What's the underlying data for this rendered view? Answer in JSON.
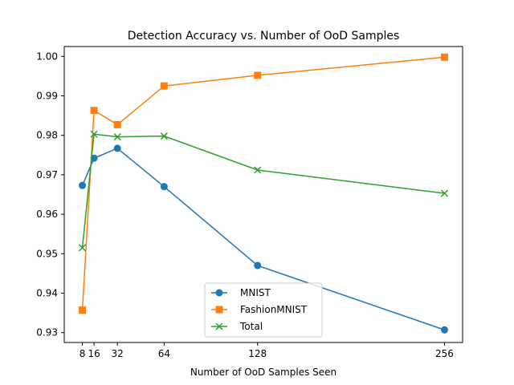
{
  "chart_data": {
    "type": "line",
    "title": "Detection Accuracy vs. Number of OoD Samples",
    "xlabel": "Number of OoD Samples Seen",
    "ylabel": "",
    "x": [
      8,
      16,
      32,
      64,
      128,
      256
    ],
    "x_ticks": [
      "8",
      "16",
      "32",
      "64",
      "128",
      "256"
    ],
    "y_ticks": [
      "0.93",
      "0.94",
      "0.95",
      "0.96",
      "0.97",
      "0.98",
      "0.99",
      "1.00"
    ],
    "ylim": [
      0.9275,
      1.0025
    ],
    "grid": false,
    "legend_position": "lower center",
    "series": [
      {
        "name": "MNIST",
        "color": "#1f77b4",
        "marker": "circle",
        "values": [
          0.9673,
          0.9742,
          0.9767,
          0.967,
          0.947,
          0.9307
        ]
      },
      {
        "name": "FashionMNIST",
        "color": "#ff7f0e",
        "marker": "square",
        "values": [
          0.9357,
          0.9863,
          0.9827,
          0.9925,
          0.9952,
          0.9998
        ]
      },
      {
        "name": "Total",
        "color": "#2ca02c",
        "marker": "x",
        "values": [
          0.9515,
          0.9803,
          0.9796,
          0.9798,
          0.9712,
          0.9653
        ]
      }
    ]
  }
}
